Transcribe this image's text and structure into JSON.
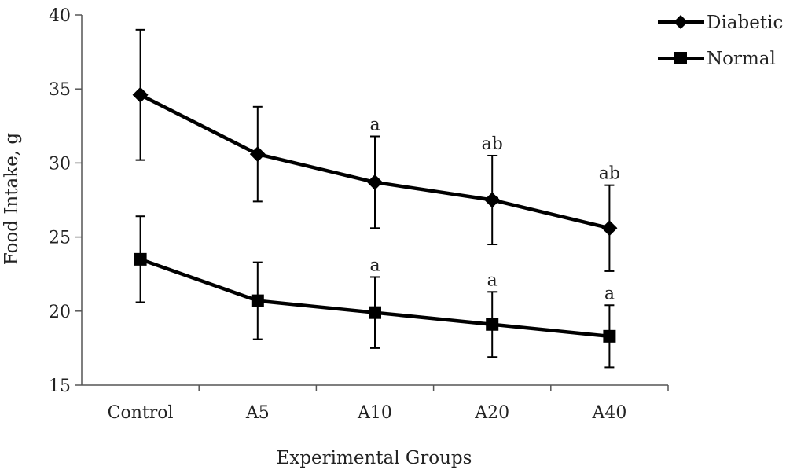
{
  "chart_data": {
    "type": "line",
    "xlabel": "Experimental Groups",
    "ylabel": "Food Intake, g",
    "categories": [
      "Control",
      "A5",
      "A10",
      "A20",
      "A40"
    ],
    "ylim": [
      15,
      40
    ],
    "yticks": [
      15,
      20,
      25,
      30,
      35,
      40
    ],
    "grid": false,
    "legend_position": "top-right",
    "series": [
      {
        "name": "Diabetic",
        "marker": "diamond",
        "color": "#000000",
        "values": [
          34.6,
          30.6,
          28.7,
          27.5,
          25.6
        ],
        "errors": [
          4.4,
          3.2,
          3.1,
          3.0,
          2.9
        ],
        "annotations": [
          "",
          "",
          "a",
          "ab",
          "ab"
        ]
      },
      {
        "name": "Normal",
        "marker": "square",
        "color": "#000000",
        "values": [
          23.5,
          20.7,
          19.9,
          19.1,
          18.3
        ],
        "errors": [
          2.9,
          2.6,
          2.4,
          2.2,
          2.1
        ],
        "annotations": [
          "",
          "",
          "a",
          "a",
          "a"
        ]
      }
    ]
  }
}
